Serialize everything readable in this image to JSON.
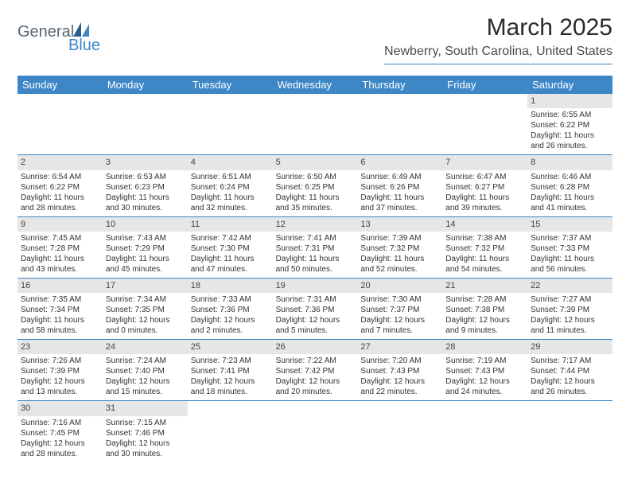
{
  "logo": {
    "text1": "General",
    "text2": "Blue"
  },
  "title": "March 2025",
  "location": "Newberry, South Carolina, United States",
  "colors": {
    "header_bg": "#3d87c7",
    "header_text": "#ffffff",
    "daynum_bg": "#e6e6e6",
    "border": "#3d87c7",
    "logo_gray": "#5a6770",
    "logo_blue": "#3d87c7"
  },
  "day_headers": [
    "Sunday",
    "Monday",
    "Tuesday",
    "Wednesday",
    "Thursday",
    "Friday",
    "Saturday"
  ],
  "weeks": [
    [
      null,
      null,
      null,
      null,
      null,
      null,
      {
        "n": "1",
        "sr": "Sunrise: 6:55 AM",
        "ss": "Sunset: 6:22 PM",
        "d1": "Daylight: 11 hours",
        "d2": "and 26 minutes."
      }
    ],
    [
      {
        "n": "2",
        "sr": "Sunrise: 6:54 AM",
        "ss": "Sunset: 6:22 PM",
        "d1": "Daylight: 11 hours",
        "d2": "and 28 minutes."
      },
      {
        "n": "3",
        "sr": "Sunrise: 6:53 AM",
        "ss": "Sunset: 6:23 PM",
        "d1": "Daylight: 11 hours",
        "d2": "and 30 minutes."
      },
      {
        "n": "4",
        "sr": "Sunrise: 6:51 AM",
        "ss": "Sunset: 6:24 PM",
        "d1": "Daylight: 11 hours",
        "d2": "and 32 minutes."
      },
      {
        "n": "5",
        "sr": "Sunrise: 6:50 AM",
        "ss": "Sunset: 6:25 PM",
        "d1": "Daylight: 11 hours",
        "d2": "and 35 minutes."
      },
      {
        "n": "6",
        "sr": "Sunrise: 6:49 AM",
        "ss": "Sunset: 6:26 PM",
        "d1": "Daylight: 11 hours",
        "d2": "and 37 minutes."
      },
      {
        "n": "7",
        "sr": "Sunrise: 6:47 AM",
        "ss": "Sunset: 6:27 PM",
        "d1": "Daylight: 11 hours",
        "d2": "and 39 minutes."
      },
      {
        "n": "8",
        "sr": "Sunrise: 6:46 AM",
        "ss": "Sunset: 6:28 PM",
        "d1": "Daylight: 11 hours",
        "d2": "and 41 minutes."
      }
    ],
    [
      {
        "n": "9",
        "sr": "Sunrise: 7:45 AM",
        "ss": "Sunset: 7:28 PM",
        "d1": "Daylight: 11 hours",
        "d2": "and 43 minutes."
      },
      {
        "n": "10",
        "sr": "Sunrise: 7:43 AM",
        "ss": "Sunset: 7:29 PM",
        "d1": "Daylight: 11 hours",
        "d2": "and 45 minutes."
      },
      {
        "n": "11",
        "sr": "Sunrise: 7:42 AM",
        "ss": "Sunset: 7:30 PM",
        "d1": "Daylight: 11 hours",
        "d2": "and 47 minutes."
      },
      {
        "n": "12",
        "sr": "Sunrise: 7:41 AM",
        "ss": "Sunset: 7:31 PM",
        "d1": "Daylight: 11 hours",
        "d2": "and 50 minutes."
      },
      {
        "n": "13",
        "sr": "Sunrise: 7:39 AM",
        "ss": "Sunset: 7:32 PM",
        "d1": "Daylight: 11 hours",
        "d2": "and 52 minutes."
      },
      {
        "n": "14",
        "sr": "Sunrise: 7:38 AM",
        "ss": "Sunset: 7:32 PM",
        "d1": "Daylight: 11 hours",
        "d2": "and 54 minutes."
      },
      {
        "n": "15",
        "sr": "Sunrise: 7:37 AM",
        "ss": "Sunset: 7:33 PM",
        "d1": "Daylight: 11 hours",
        "d2": "and 56 minutes."
      }
    ],
    [
      {
        "n": "16",
        "sr": "Sunrise: 7:35 AM",
        "ss": "Sunset: 7:34 PM",
        "d1": "Daylight: 11 hours",
        "d2": "and 58 minutes."
      },
      {
        "n": "17",
        "sr": "Sunrise: 7:34 AM",
        "ss": "Sunset: 7:35 PM",
        "d1": "Daylight: 12 hours",
        "d2": "and 0 minutes."
      },
      {
        "n": "18",
        "sr": "Sunrise: 7:33 AM",
        "ss": "Sunset: 7:36 PM",
        "d1": "Daylight: 12 hours",
        "d2": "and 2 minutes."
      },
      {
        "n": "19",
        "sr": "Sunrise: 7:31 AM",
        "ss": "Sunset: 7:36 PM",
        "d1": "Daylight: 12 hours",
        "d2": "and 5 minutes."
      },
      {
        "n": "20",
        "sr": "Sunrise: 7:30 AM",
        "ss": "Sunset: 7:37 PM",
        "d1": "Daylight: 12 hours",
        "d2": "and 7 minutes."
      },
      {
        "n": "21",
        "sr": "Sunrise: 7:28 AM",
        "ss": "Sunset: 7:38 PM",
        "d1": "Daylight: 12 hours",
        "d2": "and 9 minutes."
      },
      {
        "n": "22",
        "sr": "Sunrise: 7:27 AM",
        "ss": "Sunset: 7:39 PM",
        "d1": "Daylight: 12 hours",
        "d2": "and 11 minutes."
      }
    ],
    [
      {
        "n": "23",
        "sr": "Sunrise: 7:26 AM",
        "ss": "Sunset: 7:39 PM",
        "d1": "Daylight: 12 hours",
        "d2": "and 13 minutes."
      },
      {
        "n": "24",
        "sr": "Sunrise: 7:24 AM",
        "ss": "Sunset: 7:40 PM",
        "d1": "Daylight: 12 hours",
        "d2": "and 15 minutes."
      },
      {
        "n": "25",
        "sr": "Sunrise: 7:23 AM",
        "ss": "Sunset: 7:41 PM",
        "d1": "Daylight: 12 hours",
        "d2": "and 18 minutes."
      },
      {
        "n": "26",
        "sr": "Sunrise: 7:22 AM",
        "ss": "Sunset: 7:42 PM",
        "d1": "Daylight: 12 hours",
        "d2": "and 20 minutes."
      },
      {
        "n": "27",
        "sr": "Sunrise: 7:20 AM",
        "ss": "Sunset: 7:43 PM",
        "d1": "Daylight: 12 hours",
        "d2": "and 22 minutes."
      },
      {
        "n": "28",
        "sr": "Sunrise: 7:19 AM",
        "ss": "Sunset: 7:43 PM",
        "d1": "Daylight: 12 hours",
        "d2": "and 24 minutes."
      },
      {
        "n": "29",
        "sr": "Sunrise: 7:17 AM",
        "ss": "Sunset: 7:44 PM",
        "d1": "Daylight: 12 hours",
        "d2": "and 26 minutes."
      }
    ],
    [
      {
        "n": "30",
        "sr": "Sunrise: 7:16 AM",
        "ss": "Sunset: 7:45 PM",
        "d1": "Daylight: 12 hours",
        "d2": "and 28 minutes."
      },
      {
        "n": "31",
        "sr": "Sunrise: 7:15 AM",
        "ss": "Sunset: 7:46 PM",
        "d1": "Daylight: 12 hours",
        "d2": "and 30 minutes."
      },
      null,
      null,
      null,
      null,
      null
    ]
  ]
}
